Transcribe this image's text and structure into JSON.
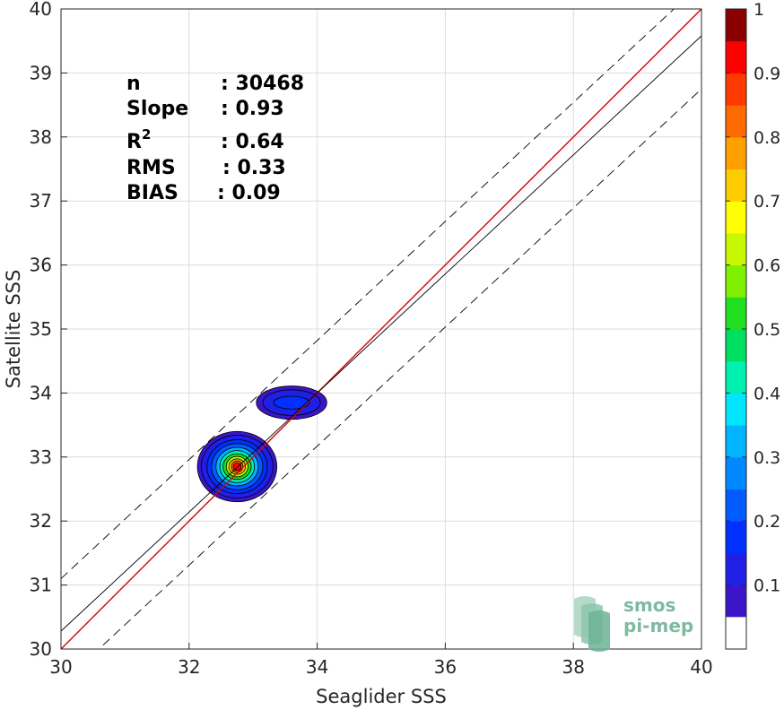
{
  "chart_data": {
    "type": "contour",
    "xlabel": "Seaglider SSS",
    "ylabel": "Satellite SSS",
    "xlim": [
      30,
      40
    ],
    "ylim": [
      30,
      40
    ],
    "xticks": [
      30,
      32,
      34,
      36,
      38,
      40
    ],
    "yticks": [
      30,
      31,
      32,
      33,
      34,
      35,
      36,
      37,
      38,
      39,
      40
    ],
    "grid": true,
    "stats": [
      {
        "label": "n",
        "value": ": 30468"
      },
      {
        "label": "Slope",
        "value": ": 0.93"
      },
      {
        "label": "R",
        "sup": "2",
        "value": ": 0.64"
      },
      {
        "label": "RMS",
        "value": ": 0.33"
      },
      {
        "label": "BIAS",
        "value": ": 0.09"
      }
    ],
    "reference_lines": [
      {
        "name": "one-to-one",
        "color": "#e00000",
        "style": "solid",
        "x": [
          30,
          40
        ],
        "y": [
          30,
          40
        ]
      },
      {
        "name": "regression",
        "color": "#000000",
        "style": "solid",
        "x": [
          30,
          40
        ],
        "y": [
          30.28,
          39.58
        ]
      },
      {
        "name": "upper-bound",
        "color": "#000000",
        "style": "dashed",
        "x": [
          30,
          40
        ],
        "y": [
          31.1,
          40.4
        ]
      },
      {
        "name": "lower-bound",
        "color": "#000000",
        "style": "dashed",
        "x": [
          30,
          40
        ],
        "y": [
          29.45,
          38.75
        ]
      }
    ],
    "density_clusters": [
      {
        "name": "main-cluster",
        "cx": 32.75,
        "cy": 32.85,
        "peak": 1.0,
        "levels": [
          {
            "level": 0.05,
            "rx": 0.62,
            "ry": 0.55
          },
          {
            "level": 0.1,
            "rx": 0.56,
            "ry": 0.49
          },
          {
            "level": 0.15,
            "rx": 0.47,
            "ry": 0.42
          },
          {
            "level": 0.2,
            "rx": 0.4,
            "ry": 0.36
          },
          {
            "level": 0.3,
            "rx": 0.33,
            "ry": 0.3
          },
          {
            "level": 0.4,
            "rx": 0.27,
            "ry": 0.25
          },
          {
            "level": 0.5,
            "rx": 0.22,
            "ry": 0.2
          },
          {
            "level": 0.6,
            "rx": 0.17,
            "ry": 0.16
          },
          {
            "level": 0.7,
            "rx": 0.13,
            "ry": 0.12
          },
          {
            "level": 0.8,
            "rx": 0.09,
            "ry": 0.09
          },
          {
            "level": 0.9,
            "rx": 0.06,
            "ry": 0.06
          }
        ]
      },
      {
        "name": "secondary-cluster",
        "cx": 33.6,
        "cy": 33.85,
        "peak": 0.18,
        "levels": [
          {
            "level": 0.05,
            "rx": 0.55,
            "ry": 0.26
          },
          {
            "level": 0.1,
            "rx": 0.45,
            "ry": 0.2
          },
          {
            "level": 0.15,
            "rx": 0.28,
            "ry": 0.1
          }
        ]
      }
    ],
    "colorbar": {
      "ticks": [
        0.1,
        0.2,
        0.3,
        0.4,
        0.5,
        0.6,
        0.7,
        0.8,
        0.9,
        1
      ],
      "range": [
        0,
        1
      ],
      "bins": 20,
      "colors": [
        "#ffffff",
        "#5e0fa8",
        "#3a16c8",
        "#1f1fe6",
        "#0030ff",
        "#005cff",
        "#0088ff",
        "#00b4ff",
        "#00e6ff",
        "#00f0b0",
        "#00e060",
        "#20e020",
        "#7ef000",
        "#c8f800",
        "#ffff00",
        "#ffcc00",
        "#ffa000",
        "#ff6a00",
        "#ff3a00",
        "#ff0000",
        "#8a0000"
      ]
    },
    "logo": {
      "line1": "smos",
      "line2": "pi-mep"
    }
  }
}
